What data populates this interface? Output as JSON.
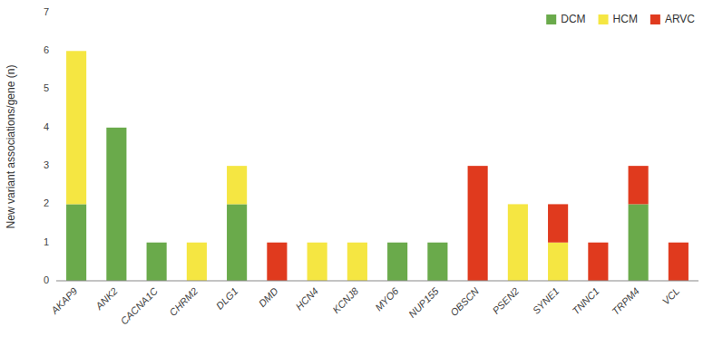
{
  "chart_data": {
    "type": "bar",
    "stacked": true,
    "categories": [
      "AKAP9",
      "ANK2",
      "CACNA1C",
      "CHRM2",
      "DLG1",
      "DMD",
      "HCN4",
      "KCNJ8",
      "MYO6",
      "NUP155",
      "OBSCN",
      "PSEN2",
      "SYNE1",
      "TNNC1",
      "TRPM4",
      "VCL"
    ],
    "series": [
      {
        "name": "DCM",
        "color": "#6aaa4b",
        "values": [
          2,
          4,
          1,
          0,
          2,
          0,
          0,
          0,
          1,
          1,
          0,
          0,
          0,
          0,
          2,
          0
        ]
      },
      {
        "name": "HCM",
        "color": "#f5e642",
        "values": [
          4,
          0,
          0,
          1,
          1,
          0,
          1,
          1,
          0,
          0,
          0,
          2,
          1,
          0,
          0,
          0
        ]
      },
      {
        "name": "ARVC",
        "color": "#e03a1e",
        "values": [
          0,
          0,
          0,
          0,
          0,
          1,
          0,
          0,
          0,
          0,
          3,
          0,
          1,
          1,
          1,
          1
        ]
      }
    ],
    "y_label": "New variant associations/gene (n)",
    "ylim": [
      0,
      7
    ],
    "yticks": [
      0,
      1,
      2,
      3,
      4,
      5,
      6,
      7
    ],
    "grid": false,
    "legend": "upper right"
  }
}
